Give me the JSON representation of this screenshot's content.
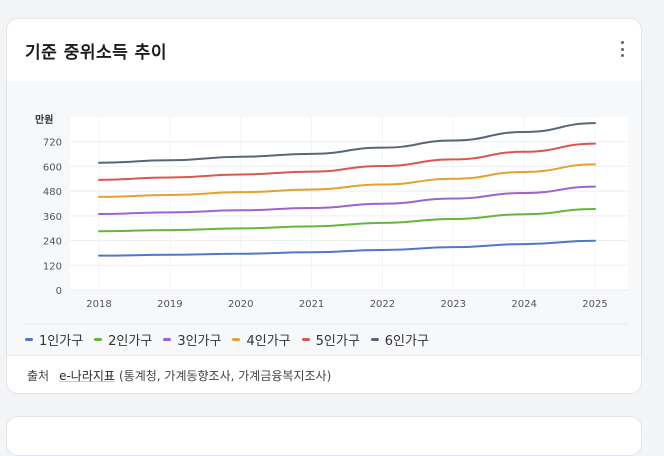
{
  "card": {
    "title": "기준 중위소득 추이",
    "more_icon": "more-vertical-icon"
  },
  "chart_data": {
    "type": "line",
    "ylabel": "만원",
    "ylim": [
      0,
      840
    ],
    "yticks": [
      0,
      120,
      240,
      360,
      480,
      600,
      720
    ],
    "categories": [
      "2018",
      "2019",
      "2020",
      "2021",
      "2022",
      "2023",
      "2024",
      "2025"
    ],
    "grid": true,
    "legend": "bottom",
    "series": [
      {
        "name": "1인가구",
        "color": "#4f78c9",
        "values": [
          167,
          171,
          176,
          183,
          194,
          208,
          223,
          239
        ]
      },
      {
        "name": "2인가구",
        "color": "#65b63b",
        "values": [
          285,
          291,
          299,
          309,
          326,
          345,
          368,
          393
        ]
      },
      {
        "name": "3인가구",
        "color": "#9c64cf",
        "values": [
          369,
          377,
          387,
          398,
          419,
          444,
          471,
          502
        ]
      },
      {
        "name": "4인가구",
        "color": "#e4a22f",
        "values": [
          452,
          461,
          475,
          488,
          512,
          540,
          573,
          610
        ]
      },
      {
        "name": "5인가구",
        "color": "#d55a4e",
        "values": [
          535,
          546,
          561,
          575,
          602,
          634,
          671,
          711
        ]
      },
      {
        "name": "6인가구",
        "color": "#5b6675",
        "values": [
          618,
          630,
          647,
          661,
          691,
          726,
          767,
          810
        ]
      }
    ]
  },
  "source": {
    "label": "출처",
    "link": "e-나라지표",
    "detail": "(통계청, 가계동향조사, 가계금융복지조사)"
  }
}
